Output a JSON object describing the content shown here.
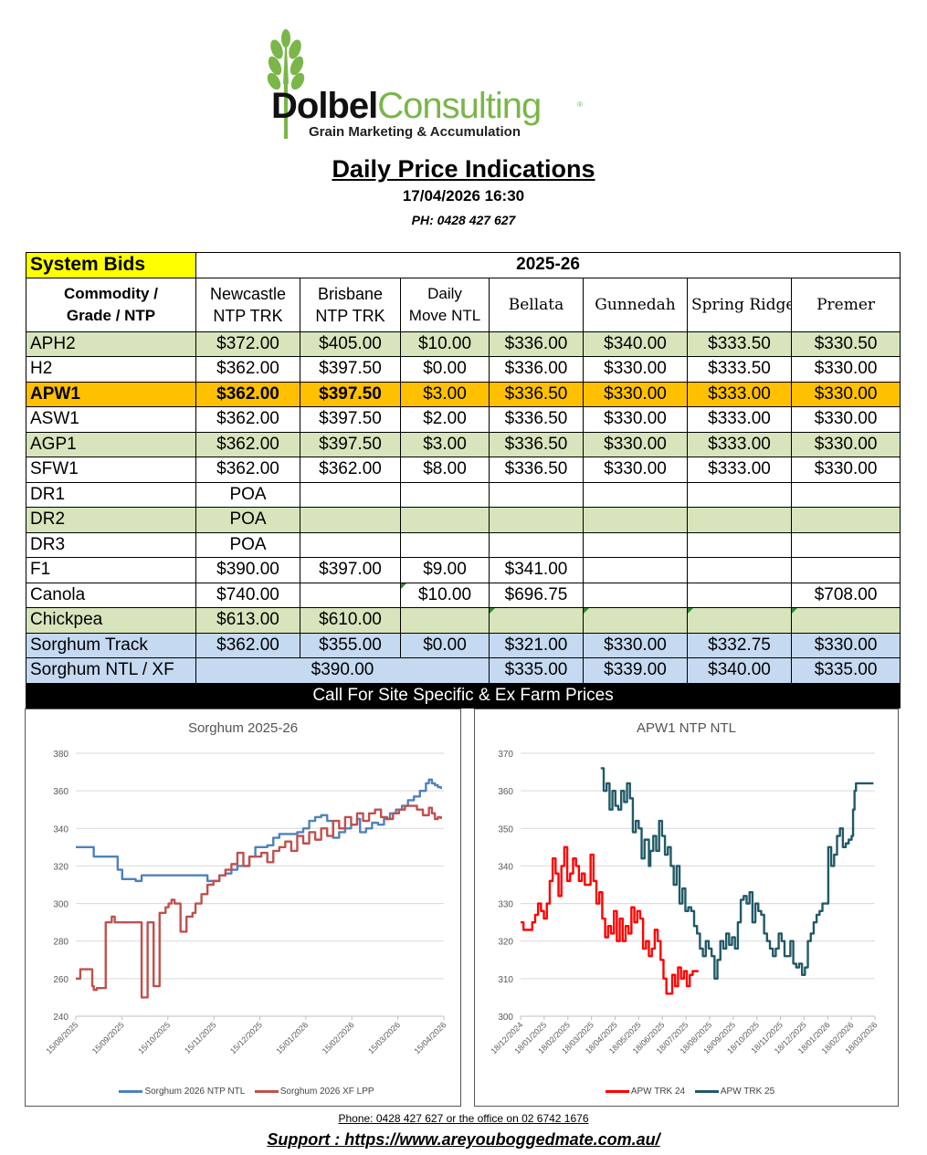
{
  "logo": {
    "brand_dark": "Dolbel",
    "brand_green": "Consulting",
    "reg": "®",
    "tagline": "Grain Marketing & Accumulation"
  },
  "header": {
    "title": "Daily Price Indications",
    "datetime": "17/04/2026 16:30",
    "phone": "PH: 0428 427 627"
  },
  "table": {
    "system_bids": "System Bids",
    "season": "2025-26",
    "col_commodity_1": "Commodity /",
    "col_commodity_2": "Grade / NTP",
    "columns": [
      [
        "Newcastle",
        "NTP TRK"
      ],
      [
        "Brisbane",
        "NTP TRK"
      ],
      [
        "Daily",
        "Move NTL"
      ],
      [
        "Bellata"
      ],
      [
        "Gunnedah"
      ],
      [
        "Spring Ridge"
      ],
      [
        "Premer"
      ]
    ],
    "rows": [
      {
        "grade": "APH2",
        "style": "green",
        "values": [
          "$372.00",
          "$405.00",
          "$10.00",
          "$336.00",
          "$340.00",
          "$333.50",
          "$330.50"
        ]
      },
      {
        "grade": "H2",
        "style": "white",
        "values": [
          "$362.00",
          "$397.50",
          "$0.00",
          "$336.00",
          "$330.00",
          "$333.50",
          "$330.00"
        ]
      },
      {
        "grade": "APW1",
        "style": "orange",
        "values": [
          "$362.00",
          "$397.50",
          "$3.00",
          "$336.50",
          "$330.00",
          "$333.00",
          "$330.00"
        ]
      },
      {
        "grade": "ASW1",
        "style": "white",
        "values": [
          "$362.00",
          "$397.50",
          "$2.00",
          "$336.50",
          "$330.00",
          "$333.00",
          "$330.00"
        ]
      },
      {
        "grade": "AGP1",
        "style": "green",
        "values": [
          "$362.00",
          "$397.50",
          "$3.00",
          "$336.50",
          "$330.00",
          "$333.00",
          "$330.00"
        ]
      },
      {
        "grade": "SFW1",
        "style": "white",
        "values": [
          "$362.00",
          "$362.00",
          "$8.00",
          "$336.50",
          "$330.00",
          "$333.00",
          "$330.00"
        ]
      },
      {
        "grade": "DR1",
        "style": "white",
        "values": [
          "POA",
          "",
          "",
          "",
          "",
          "",
          ""
        ]
      },
      {
        "grade": "DR2",
        "style": "green",
        "values": [
          "POA",
          "",
          "",
          "",
          "",
          "",
          ""
        ]
      },
      {
        "grade": "DR3",
        "style": "white",
        "values": [
          "POA",
          "",
          "",
          "",
          "",
          "",
          ""
        ]
      },
      {
        "grade": "F1",
        "style": "white",
        "values": [
          "$390.00",
          "$397.00",
          "$9.00",
          "$341.00",
          "",
          "",
          ""
        ]
      },
      {
        "grade": "Canola",
        "style": "white",
        "values": [
          "$740.00",
          "",
          "$10.00",
          "$696.75",
          "",
          "",
          "$708.00"
        ]
      },
      {
        "grade": "Chickpea",
        "style": "green",
        "values": [
          "$613.00",
          "$610.00",
          "",
          "",
          "",
          "",
          ""
        ]
      },
      {
        "grade": "Sorghum Track",
        "style": "blue",
        "values": [
          "$362.00",
          "$355.00",
          "$0.00",
          "$321.00",
          "$330.00",
          "$332.75",
          "$330.00"
        ]
      }
    ],
    "sorghum_ntl": {
      "grade": "Sorghum NTL / XF",
      "port_value": "$390.00",
      "values": [
        "$335.00",
        "$339.00",
        "$340.00",
        "$335.00"
      ]
    },
    "call_banner": "Call For Site Specific & Ex Farm Prices"
  },
  "chart_data": [
    {
      "type": "line",
      "title": "Sorghum 2025-26",
      "ylim": [
        240,
        380
      ],
      "yticks": [
        240,
        260,
        280,
        300,
        320,
        340,
        360,
        380
      ],
      "xticks": [
        "15/08/2025",
        "15/09/2025",
        "15/10/2025",
        "15/11/2025",
        "15/12/2025",
        "15/01/2026",
        "15/02/2026",
        "15/03/2026",
        "15/04/2026"
      ],
      "x_range_days": [
        0,
        246
      ],
      "grid": true,
      "legend": "bottom",
      "series": [
        {
          "name": "Sorghum 2026 NTP NTL",
          "color": "#4f81bd",
          "x": [
            0,
            4,
            8,
            12,
            14,
            18,
            22,
            28,
            31,
            34,
            36,
            40,
            44,
            48,
            52,
            56,
            60,
            64,
            68,
            72,
            76,
            80,
            84,
            88,
            92,
            96,
            100,
            104,
            108,
            112,
            116,
            120,
            124,
            128,
            132,
            136,
            140,
            144,
            148,
            152,
            156,
            160,
            164,
            168,
            172,
            176,
            180,
            184,
            188,
            190,
            194,
            198,
            202,
            206,
            210,
            214,
            218,
            222,
            226,
            230,
            234,
            236,
            238,
            240,
            242,
            244
          ],
          "y": [
            330,
            330,
            330,
            325,
            325,
            325,
            325,
            318,
            313,
            313,
            313,
            312,
            315,
            315,
            315,
            315,
            315,
            315,
            315,
            315,
            315,
            315,
            315,
            312,
            312,
            315,
            316,
            318,
            320,
            320,
            325,
            330,
            330,
            331,
            335,
            337,
            337,
            337,
            338,
            340,
            344,
            346,
            347,
            344,
            335,
            338,
            340,
            342,
            345,
            338,
            340,
            343,
            342,
            345,
            348,
            350,
            352,
            355,
            357,
            360,
            364,
            366,
            364,
            363,
            362,
            361
          ],
          "steps": [
            0,
            0,
            0,
            1,
            0,
            0,
            0,
            -1,
            0,
            0,
            0,
            0,
            0,
            0,
            0,
            0,
            0,
            0,
            0,
            0,
            0,
            0,
            0,
            0,
            0,
            0,
            0,
            0,
            0,
            0,
            0,
            0,
            0,
            0,
            0,
            0,
            0,
            0,
            0,
            0,
            0,
            0,
            0,
            0,
            0,
            0,
            0,
            0,
            0,
            0,
            0,
            0,
            0,
            0,
            0,
            0,
            0,
            0,
            0,
            0,
            0,
            0,
            0,
            0,
            0,
            0
          ]
        },
        {
          "name": "Sorghum 2026 XF LPP",
          "color": "#c0504d",
          "x": [
            0,
            3,
            6,
            10,
            11,
            12,
            14,
            18,
            20,
            22,
            24,
            26,
            30,
            34,
            38,
            40,
            42,
            44,
            46,
            48,
            50,
            52,
            56,
            60,
            62,
            64,
            66,
            70,
            74,
            78,
            80,
            84,
            88,
            92,
            96,
            100,
            104,
            108,
            112,
            116,
            120,
            124,
            128,
            132,
            136,
            140,
            144,
            148,
            152,
            156,
            160,
            164,
            168,
            172,
            176,
            180,
            184,
            188,
            192,
            196,
            200,
            204,
            208,
            212,
            216,
            220,
            224,
            228,
            232,
            236,
            238,
            240,
            242,
            244
          ],
          "y": [
            260,
            265,
            265,
            265,
            256,
            254,
            255,
            255,
            290,
            290,
            293,
            290,
            290,
            290,
            290,
            290,
            290,
            250,
            250,
            290,
            290,
            256,
            295,
            298,
            300,
            302,
            300,
            285,
            293,
            295,
            300,
            305,
            310,
            312,
            315,
            318,
            321,
            327,
            320,
            325,
            325,
            327,
            322,
            328,
            330,
            333,
            328,
            336,
            332,
            338,
            334,
            340,
            336,
            344,
            340,
            346,
            342,
            348,
            344,
            348,
            350,
            346,
            345,
            348,
            350,
            352,
            352,
            350,
            347,
            351,
            348,
            345,
            346,
            345
          ],
          "steps": []
        }
      ]
    },
    {
      "type": "line",
      "title": "APW1 NTP NTL",
      "ylim": [
        300,
        370
      ],
      "yticks": [
        300,
        310,
        320,
        330,
        340,
        350,
        360,
        370
      ],
      "xticks": [
        "18/12/2024",
        "18/01/2025",
        "18/02/2025",
        "18/03/2025",
        "18/04/2025",
        "18/05/2025",
        "18/06/2025",
        "18/07/2025",
        "18/08/2025",
        "18/09/2025",
        "18/10/2025",
        "18/11/2025",
        "18/12/2025",
        "18/01/2026",
        "18/02/2026",
        "18/03/2026"
      ],
      "x_range_days": [
        0,
        486
      ],
      "grid": true,
      "legend": "bottom",
      "series": [
        {
          "name": "APW TRK 24",
          "color": "#ff0000",
          "x": [
            0,
            4,
            8,
            12,
            16,
            20,
            24,
            28,
            32,
            36,
            40,
            44,
            48,
            52,
            56,
            60,
            64,
            68,
            72,
            76,
            80,
            84,
            88,
            92,
            96,
            100,
            104,
            108,
            112,
            116,
            120,
            124,
            128,
            132,
            136,
            140,
            144,
            148,
            152,
            156,
            160,
            164,
            168,
            172,
            176,
            180,
            184,
            188,
            192,
            196,
            200,
            204,
            208,
            212,
            216,
            220,
            224,
            228,
            232,
            236,
            240,
            244
          ],
          "y": [
            325,
            323,
            323,
            323,
            325,
            327,
            330,
            328,
            326,
            330,
            336,
            342,
            338,
            332,
            340,
            345,
            336,
            338,
            342,
            340,
            336,
            338,
            335,
            335,
            343,
            336,
            330,
            333,
            326,
            321,
            324,
            322,
            328,
            320,
            326,
            320,
            324,
            322,
            329,
            325,
            328,
            326,
            318,
            320,
            316,
            318,
            323,
            320,
            315,
            310,
            306,
            306,
            311,
            308,
            313,
            310,
            312,
            308,
            311,
            312,
            312,
            312
          ]
        },
        {
          "name": "APW TRK 25",
          "color": "#215967",
          "x": [
            110,
            114,
            118,
            122,
            126,
            130,
            134,
            138,
            142,
            146,
            150,
            154,
            158,
            162,
            166,
            170,
            174,
            176,
            178,
            182,
            186,
            190,
            194,
            198,
            202,
            206,
            210,
            214,
            218,
            222,
            226,
            230,
            234,
            238,
            242,
            246,
            250,
            254,
            258,
            262,
            266,
            270,
            274,
            278,
            282,
            286,
            290,
            294,
            298,
            302,
            306,
            310,
            314,
            318,
            322,
            326,
            330,
            334,
            338,
            342,
            346,
            350,
            354,
            358,
            362,
            366,
            370,
            374,
            378,
            382,
            386,
            390,
            394,
            398,
            402,
            406,
            410,
            414,
            418,
            422,
            426,
            430,
            434,
            438,
            442,
            446,
            450,
            454,
            456,
            458,
            460,
            462,
            464,
            466,
            468,
            470,
            472,
            474,
            476,
            478,
            480,
            482,
            484
          ],
          "y": [
            366,
            360,
            362,
            355,
            360,
            356,
            355,
            360,
            357,
            362,
            358,
            349,
            352,
            350,
            342,
            347,
            347,
            340,
            344,
            348,
            344,
            352,
            348,
            343,
            345,
            340,
            335,
            340,
            330,
            334,
            328,
            329,
            328,
            324,
            322,
            318,
            316,
            320,
            318,
            316,
            310,
            315,
            320,
            318,
            322,
            319,
            321,
            318,
            325,
            331,
            332,
            330,
            333,
            325,
            330,
            328,
            327,
            322,
            320,
            318,
            316,
            318,
            322,
            320,
            316,
            316,
            320,
            314,
            313,
            314,
            311,
            313,
            320,
            322,
            325,
            327,
            328,
            330,
            330,
            345,
            340,
            343,
            348,
            350,
            345,
            346,
            347,
            348,
            355,
            360,
            362,
            362,
            362,
            362,
            362,
            362,
            362,
            362,
            362,
            362,
            362,
            362,
            362
          ]
        }
      ]
    }
  ],
  "footer": {
    "phone_line": "Phone: 0428 427 627 or the office on 02 6742 1676",
    "support": "Support : https://www.areyouboggedmate.com.au/"
  }
}
